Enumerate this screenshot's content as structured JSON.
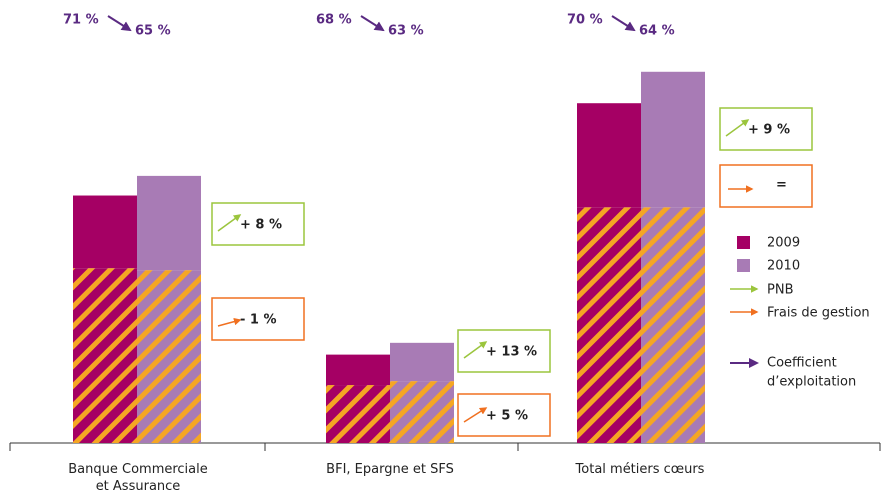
{
  "chart_data": {
    "type": "stacked_bar",
    "categories": [
      "Banque Commerciale et Assurance",
      "BFI, Epargne et SFS",
      "Total métiers cœurs"
    ],
    "series": [
      {
        "name": "2009",
        "color": "#a50064",
        "values": [
          74,
          31,
          106
        ],
        "frais": [
          178,
          59,
          240
        ]
      },
      {
        "name": "2010",
        "color": "#a87bb5",
        "values": [
          96,
          39,
          138
        ],
        "frais": [
          176,
          63,
          240
        ]
      }
    ],
    "hatch_color": "#f5a623",
    "ylim": [
      0,
      390
    ],
    "ratios": [
      [
        "71 %",
        "65 %"
      ],
      [
        "68 %",
        "63 %"
      ],
      [
        "70 %",
        "64 %"
      ]
    ],
    "pnb_changes": [
      "+ 8 %",
      "+ 13 %",
      "+ 9 %"
    ],
    "frais_changes": [
      "- 1 %",
      "+ 5 %",
      "="
    ],
    "legend": {
      "pnb": "PNB",
      "frais": "Frais de gestion",
      "coefficient": [
        "Coefficient",
        "d’exploitation"
      ]
    },
    "colors": {
      "pnb": "#9bc53d",
      "frais": "#f07020",
      "coefficient": "#5a2a82"
    }
  }
}
